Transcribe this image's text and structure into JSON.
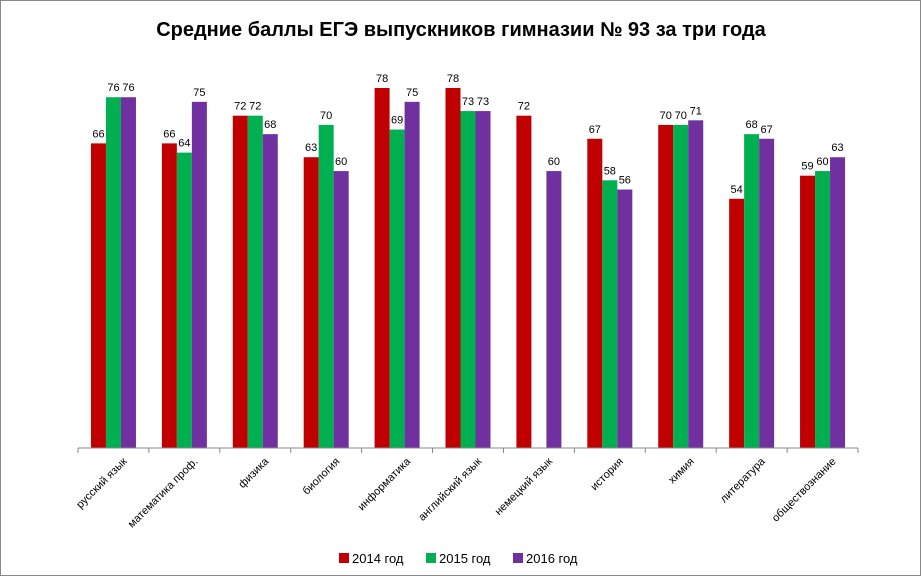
{
  "chart_data": {
    "type": "bar",
    "title": "Средние баллы ЕГЭ выпускников гимназии № 93 за три года",
    "categories": [
      "русский язык",
      "математика проф.",
      "физика",
      "биология",
      "информатика",
      "английский язык",
      "немецкий язык",
      "история",
      "химия",
      "литература",
      "обществознание"
    ],
    "series": [
      {
        "name": "2014 год",
        "color": "#C00000",
        "values": [
          66,
          66,
          72,
          63,
          78,
          78,
          72,
          67,
          70,
          54,
          59
        ]
      },
      {
        "name": "2015 год",
        "color": "#00B050",
        "values": [
          76,
          64,
          72,
          70,
          69,
          73,
          null,
          58,
          70,
          68,
          60
        ]
      },
      {
        "name": "2016 год",
        "color": "#7030A0",
        "values": [
          76,
          75,
          68,
          60,
          75,
          73,
          60,
          56,
          71,
          67,
          63
        ]
      }
    ],
    "ylim": [
      0,
      78
    ],
    "grid": false,
    "legend": "bottom",
    "data_labels": true
  }
}
